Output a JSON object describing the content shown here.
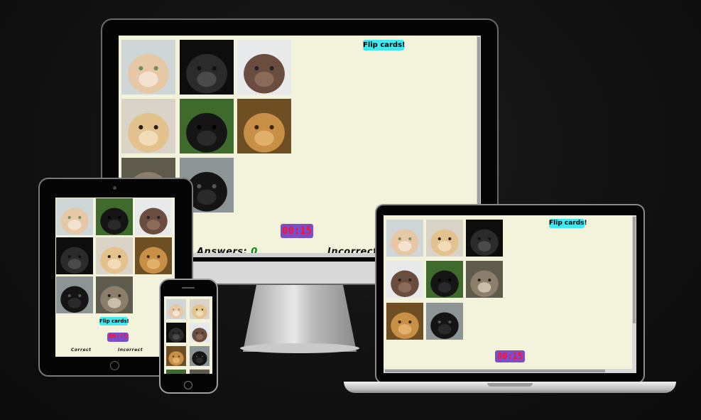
{
  "game": {
    "flip_label": "Flip cards!",
    "timer": "00:15",
    "answers_label": "Answers:",
    "answers_value": "0",
    "incorrect_label": "Incorrect",
    "correct_label": "Correct",
    "cards": [
      "cat",
      "gorilla",
      "elephant",
      "dog",
      "horse",
      "lion",
      "wolf",
      "raven"
    ]
  },
  "devices": {
    "desktop": {
      "cards": [
        "cat",
        "gorilla",
        "elephant",
        "dog",
        "horse",
        "lion",
        "wolf",
        "raven"
      ]
    },
    "laptop": {
      "cards": [
        "cat",
        "dog",
        "gorilla",
        "elephant",
        "horse",
        "wolf",
        "lion",
        "raven"
      ]
    },
    "tablet": {
      "cards": [
        "cat",
        "horse",
        "elephant",
        "gorilla",
        "dog",
        "lion",
        "raven",
        "wolf"
      ]
    },
    "phone": {
      "cards": [
        "cat",
        "dog",
        "gorilla",
        "elephant",
        "lion",
        "raven",
        "horse",
        "wolf"
      ]
    }
  },
  "colors": {
    "page_bg": "#f3f3dc",
    "flip_button_bg": "#40e8f0",
    "timer_bg": "#7b4ec9",
    "timer_text": "#ff1030",
    "answers_value_color": "#0a8a0a"
  }
}
